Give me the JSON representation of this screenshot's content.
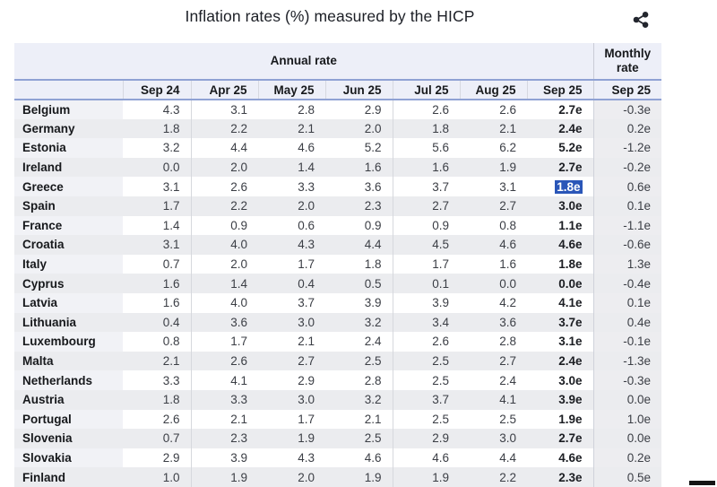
{
  "title": "Inflation rates (%) measured by the HICP",
  "accent_colors": {
    "header_background": "#edeff8",
    "header_rule_blue": "#8fa2d4",
    "row_stripe": "#ebecef",
    "selection_blue": "#2a56b8",
    "icon_dark": "#23262e"
  },
  "chart_data": {
    "type": "table",
    "title": "Inflation rates (%) measured by the HICP",
    "column_groups": [
      {
        "label": "Annual rate",
        "columns": [
          "Sep 24",
          "Apr 25",
          "May 25",
          "Jun 25",
          "Jul 25",
          "Aug 25",
          "Sep 25"
        ]
      },
      {
        "label": "Monthly rate",
        "columns": [
          "Sep 25"
        ]
      }
    ],
    "rows": [
      {
        "country": "Belgium",
        "annual": [
          "4.3",
          "3.1",
          "2.8",
          "2.9",
          "2.6",
          "2.6",
          "2.7e"
        ],
        "monthly": "-0.3e"
      },
      {
        "country": "Germany",
        "annual": [
          "1.8",
          "2.2",
          "2.1",
          "2.0",
          "1.8",
          "2.1",
          "2.4e"
        ],
        "monthly": "0.2e"
      },
      {
        "country": "Estonia",
        "annual": [
          "3.2",
          "4.4",
          "4.6",
          "5.2",
          "5.6",
          "6.2",
          "5.2e"
        ],
        "monthly": "-1.2e"
      },
      {
        "country": "Ireland",
        "annual": [
          "0.0",
          "2.0",
          "1.4",
          "1.6",
          "1.6",
          "1.9",
          "2.7e"
        ],
        "monthly": "-0.2e"
      },
      {
        "country": "Greece",
        "annual": [
          "3.1",
          "2.6",
          "3.3",
          "3.6",
          "3.7",
          "3.1",
          "1.8e"
        ],
        "monthly": "0.6e"
      },
      {
        "country": "Spain",
        "annual": [
          "1.7",
          "2.2",
          "2.0",
          "2.3",
          "2.7",
          "2.7",
          "3.0e"
        ],
        "monthly": "0.1e"
      },
      {
        "country": "France",
        "annual": [
          "1.4",
          "0.9",
          "0.6",
          "0.9",
          "0.9",
          "0.8",
          "1.1e"
        ],
        "monthly": "-1.1e"
      },
      {
        "country": "Croatia",
        "annual": [
          "3.1",
          "4.0",
          "4.3",
          "4.4",
          "4.5",
          "4.6",
          "4.6e"
        ],
        "monthly": "-0.6e"
      },
      {
        "country": "Italy",
        "annual": [
          "0.7",
          "2.0",
          "1.7",
          "1.8",
          "1.7",
          "1.6",
          "1.8e"
        ],
        "monthly": "1.3e"
      },
      {
        "country": "Cyprus",
        "annual": [
          "1.6",
          "1.4",
          "0.4",
          "0.5",
          "0.1",
          "0.0",
          "0.0e"
        ],
        "monthly": "-0.4e"
      },
      {
        "country": "Latvia",
        "annual": [
          "1.6",
          "4.0",
          "3.7",
          "3.9",
          "3.9",
          "4.2",
          "4.1e"
        ],
        "monthly": "0.1e"
      },
      {
        "country": "Lithuania",
        "annual": [
          "0.4",
          "3.6",
          "3.0",
          "3.2",
          "3.4",
          "3.6",
          "3.7e"
        ],
        "monthly": "0.4e"
      },
      {
        "country": "Luxembourg",
        "annual": [
          "0.8",
          "1.7",
          "2.1",
          "2.4",
          "2.6",
          "2.8",
          "3.1e"
        ],
        "monthly": "-0.1e"
      },
      {
        "country": "Malta",
        "annual": [
          "2.1",
          "2.6",
          "2.7",
          "2.5",
          "2.5",
          "2.7",
          "2.4e"
        ],
        "monthly": "-1.3e"
      },
      {
        "country": "Netherlands",
        "annual": [
          "3.3",
          "4.1",
          "2.9",
          "2.8",
          "2.5",
          "2.4",
          "3.0e"
        ],
        "monthly": "-0.3e"
      },
      {
        "country": "Austria",
        "annual": [
          "1.8",
          "3.3",
          "3.0",
          "3.2",
          "3.7",
          "4.1",
          "3.9e"
        ],
        "monthly": "0.0e"
      },
      {
        "country": "Portugal",
        "annual": [
          "2.6",
          "2.1",
          "1.7",
          "2.1",
          "2.5",
          "2.5",
          "1.9e"
        ],
        "monthly": "1.0e"
      },
      {
        "country": "Slovenia",
        "annual": [
          "0.7",
          "2.3",
          "1.9",
          "2.5",
          "2.9",
          "3.0",
          "2.7e"
        ],
        "monthly": "0.0e"
      },
      {
        "country": "Slovakia",
        "annual": [
          "2.9",
          "3.9",
          "4.3",
          "4.6",
          "4.6",
          "4.4",
          "4.6e"
        ],
        "monthly": "0.2e"
      },
      {
        "country": "Finland",
        "annual": [
          "1.0",
          "1.9",
          "2.0",
          "1.9",
          "1.9",
          "2.2",
          "2.3e"
        ],
        "monthly": "0.5e"
      }
    ],
    "selected_cell": {
      "country": "Greece",
      "column": "Sep 25",
      "value": "1.8e"
    }
  }
}
